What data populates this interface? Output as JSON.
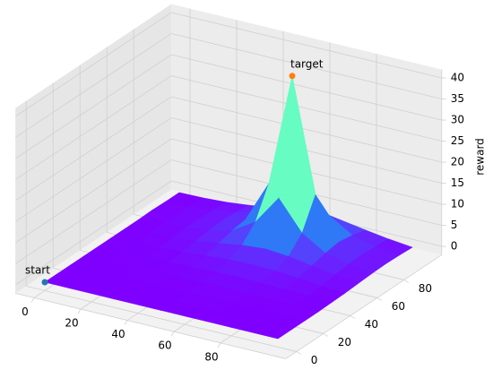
{
  "chart_data": {
    "type": "surface",
    "colormap": "rainbow",
    "x": [
      0,
      10,
      20,
      30,
      40,
      50,
      60,
      70,
      80,
      90,
      100
    ],
    "y": [
      0,
      10,
      20,
      30,
      40,
      50,
      60,
      70,
      80,
      90,
      100
    ],
    "z": [
      [
        0,
        0,
        0,
        0,
        0,
        0,
        0,
        0,
        0,
        0,
        0
      ],
      [
        0,
        0,
        0,
        0,
        0,
        0,
        0,
        0,
        0,
        0,
        0
      ],
      [
        0,
        0,
        0,
        0,
        0,
        0,
        0.1,
        0,
        0,
        0,
        0
      ],
      [
        0,
        0,
        0,
        0.1,
        0.1,
        0.2,
        0.2,
        0.2,
        0.1,
        0.1,
        0
      ],
      [
        0,
        0,
        0.1,
        0.2,
        0.4,
        0.6,
        0.7,
        0.6,
        0.4,
        0.2,
        0.1
      ],
      [
        0,
        0.1,
        0.2,
        0.5,
        1.0,
        1.4,
        1.6,
        1.4,
        1.0,
        0.5,
        0.2
      ],
      [
        0,
        0.1,
        0.4,
        1.0,
        1.8,
        2.7,
        3.2,
        2.7,
        1.8,
        1.0,
        0.4
      ],
      [
        0,
        0.2,
        0.6,
        1.4,
        2.7,
        6.1,
        13.1,
        6.1,
        2.7,
        1.4,
        0.6
      ],
      [
        0.1,
        0.2,
        0.7,
        1.6,
        3.2,
        13.1,
        40,
        13.1,
        3.2,
        1.6,
        0.7
      ],
      [
        0,
        0.2,
        0.6,
        1.4,
        2.7,
        6.1,
        13.1,
        6.1,
        2.7,
        1.4,
        0.6
      ],
      [
        0,
        0.1,
        0.4,
        1.0,
        1.8,
        2.7,
        3.2,
        2.7,
        1.8,
        1.0,
        0.4
      ]
    ],
    "xlim": [
      -8,
      108
    ],
    "ylim": [
      -8,
      108
    ],
    "zlim": [
      -2,
      42
    ],
    "xticks": [
      0,
      20,
      40,
      60,
      80
    ],
    "yticks": [
      0,
      20,
      40,
      60,
      80
    ],
    "zticks": [
      0,
      5,
      10,
      15,
      20,
      25,
      30,
      35,
      40
    ],
    "zlabel": "reward",
    "annotations": [
      {
        "text": "start",
        "x": 0,
        "y": 0,
        "z": 0,
        "color": "#1f77b4"
      },
      {
        "text": "target",
        "x": 60,
        "y": 80,
        "z": 40,
        "color": "#ff7f0e"
      }
    ]
  }
}
